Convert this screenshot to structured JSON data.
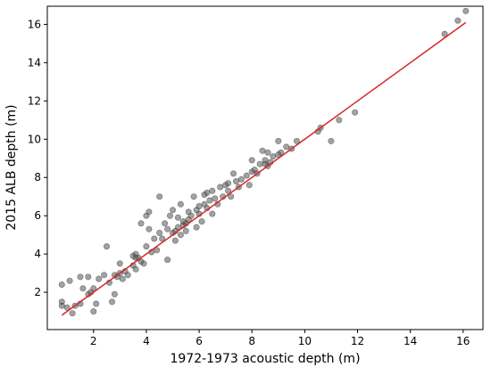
{
  "chart_data": {
    "type": "scatter",
    "title": "",
    "xlabel": "1972-1973 acoustic depth (m)",
    "ylabel": "2015 ALB depth (m)",
    "xlim": [
      0.25,
      16.75
    ],
    "ylim": [
      0.05,
      16.95
    ],
    "xticks": [
      2,
      4,
      6,
      8,
      10,
      12,
      14,
      16
    ],
    "yticks": [
      2,
      4,
      6,
      8,
      10,
      12,
      14,
      16
    ],
    "grid": false,
    "legend": "none",
    "colors": {
      "points": "#555555",
      "point_alpha": 0.55,
      "fit_line": "#d62728"
    },
    "fit_line": {
      "x": [
        0.8,
        16.1
      ],
      "y": [
        0.8,
        16.1
      ]
    },
    "series": [
      {
        "points": [
          [
            0.8,
            2.4
          ],
          [
            0.8,
            1.5
          ],
          [
            0.8,
            1.3
          ],
          [
            1.0,
            1.2
          ],
          [
            1.1,
            2.6
          ],
          [
            1.2,
            0.9
          ],
          [
            1.3,
            1.3
          ],
          [
            1.5,
            2.8
          ],
          [
            1.5,
            1.4
          ],
          [
            1.6,
            2.2
          ],
          [
            1.8,
            2.8
          ],
          [
            1.8,
            1.9
          ],
          [
            1.9,
            2.0
          ],
          [
            2.0,
            1.0
          ],
          [
            2.0,
            2.2
          ],
          [
            2.1,
            1.4
          ],
          [
            2.2,
            2.7
          ],
          [
            2.4,
            2.9
          ],
          [
            2.5,
            4.4
          ],
          [
            2.6,
            2.5
          ],
          [
            2.7,
            1.5
          ],
          [
            2.8,
            1.9
          ],
          [
            2.8,
            2.9
          ],
          [
            2.9,
            2.8
          ],
          [
            3.0,
            3.5
          ],
          [
            3.0,
            3.0
          ],
          [
            3.1,
            2.7
          ],
          [
            3.2,
            3.1
          ],
          [
            3.3,
            2.9
          ],
          [
            3.5,
            3.4
          ],
          [
            3.5,
            3.9
          ],
          [
            3.6,
            4.0
          ],
          [
            3.6,
            3.2
          ],
          [
            3.7,
            3.8
          ],
          [
            3.8,
            3.6
          ],
          [
            3.8,
            5.6
          ],
          [
            3.9,
            3.5
          ],
          [
            4.0,
            4.4
          ],
          [
            4.0,
            6.0
          ],
          [
            4.1,
            6.2
          ],
          [
            4.1,
            5.3
          ],
          [
            4.2,
            4.1
          ],
          [
            4.3,
            4.8
          ],
          [
            4.4,
            4.2
          ],
          [
            4.5,
            5.1
          ],
          [
            4.5,
            7.0
          ],
          [
            4.6,
            4.8
          ],
          [
            4.7,
            5.6
          ],
          [
            4.8,
            5.3
          ],
          [
            4.8,
            3.7
          ],
          [
            4.9,
            6.0
          ],
          [
            5.0,
            5.1
          ],
          [
            5.0,
            6.3
          ],
          [
            5.1,
            5.2
          ],
          [
            5.1,
            4.7
          ],
          [
            5.2,
            5.4
          ],
          [
            5.2,
            5.9
          ],
          [
            5.3,
            5.0
          ],
          [
            5.3,
            6.6
          ],
          [
            5.4,
            5.5
          ],
          [
            5.5,
            5.6
          ],
          [
            5.5,
            5.2
          ],
          [
            5.6,
            6.2
          ],
          [
            5.6,
            5.8
          ],
          [
            5.7,
            6.0
          ],
          [
            5.8,
            7.0
          ],
          [
            5.9,
            5.4
          ],
          [
            6.0,
            6.5
          ],
          [
            6.0,
            6.1
          ],
          [
            6.1,
            5.7
          ],
          [
            6.2,
            6.6
          ],
          [
            6.2,
            7.1
          ],
          [
            6.3,
            6.4
          ],
          [
            6.4,
            6.8
          ],
          [
            6.5,
            6.1
          ],
          [
            6.5,
            7.3
          ],
          [
            6.6,
            6.9
          ],
          [
            6.7,
            6.6
          ],
          [
            6.8,
            7.5
          ],
          [
            6.9,
            7.0
          ],
          [
            7.0,
            7.6
          ],
          [
            7.1,
            7.3
          ],
          [
            7.2,
            7.0
          ],
          [
            7.3,
            8.2
          ],
          [
            7.4,
            7.8
          ],
          [
            7.5,
            7.5
          ],
          [
            7.6,
            7.9
          ],
          [
            7.8,
            8.1
          ],
          [
            7.9,
            7.6
          ],
          [
            8.0,
            8.9
          ],
          [
            8.0,
            8.3
          ],
          [
            8.1,
            8.4
          ],
          [
            8.2,
            8.2
          ],
          [
            8.3,
            8.7
          ],
          [
            8.4,
            9.4
          ],
          [
            8.5,
            8.9
          ],
          [
            8.6,
            8.6
          ],
          [
            8.6,
            9.3
          ],
          [
            8.7,
            8.8
          ],
          [
            8.8,
            9.1
          ],
          [
            9.0,
            9.2
          ],
          [
            9.0,
            9.9
          ],
          [
            9.1,
            9.3
          ],
          [
            9.3,
            9.6
          ],
          [
            9.5,
            9.5
          ],
          [
            9.7,
            9.9
          ],
          [
            10.5,
            10.4
          ],
          [
            10.6,
            10.6
          ],
          [
            11.0,
            9.9
          ],
          [
            11.3,
            11.0
          ],
          [
            11.9,
            11.4
          ],
          [
            15.3,
            15.5
          ],
          [
            15.8,
            16.2
          ],
          [
            16.1,
            16.7
          ],
          [
            5.9,
            6.3
          ],
          [
            6.3,
            7.2
          ],
          [
            7.1,
            7.7
          ],
          [
            8.5,
            8.7
          ],
          [
            3.6,
            3.8
          ],
          [
            5.4,
            5.7
          ]
        ]
      }
    ]
  }
}
